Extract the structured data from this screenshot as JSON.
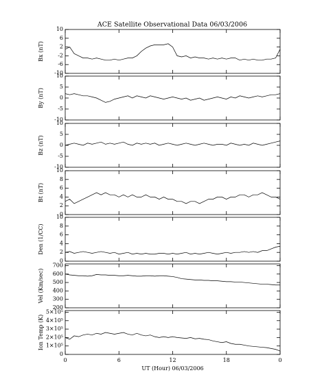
{
  "chart_data": [
    {
      "type": "line",
      "title": "ACE Satellite Observational Data   06/03/2006",
      "ylabel": "Bx (nT)",
      "color": "#000000",
      "x": [
        0,
        0.5,
        1,
        1.5,
        2,
        2.5,
        3,
        3.5,
        4,
        4.5,
        5,
        5.5,
        6,
        6.5,
        7,
        7.5,
        8,
        8.5,
        9,
        9.5,
        10,
        10.5,
        11,
        11.5,
        12,
        12.5,
        13,
        13.5,
        14,
        14.5,
        15,
        15.5,
        16,
        16.5,
        17,
        17.5,
        18,
        18.5,
        19,
        19.5,
        20,
        20.5,
        21,
        21.5,
        22,
        22.5,
        23,
        23.5,
        24
      ],
      "values": [
        1,
        2,
        -1,
        -2,
        -3,
        -3,
        -3.5,
        -3,
        -3.5,
        -4,
        -4,
        -3.5,
        -4,
        -3.5,
        -3,
        -3,
        -2,
        0,
        1.5,
        2.5,
        3,
        3,
        3,
        3.5,
        2,
        -2,
        -2.5,
        -2,
        -3,
        -2.5,
        -3,
        -3,
        -3.5,
        -3,
        -3.5,
        -3,
        -3.5,
        -3,
        -3,
        -4,
        -3.5,
        -4,
        -3.5,
        -4,
        -4,
        -3.5,
        -3.5,
        -3,
        1
      ],
      "xlim": [
        0,
        24
      ],
      "ylim": [
        -10,
        10
      ],
      "yticks": [
        -10,
        -6,
        -2,
        2,
        6,
        10
      ]
    },
    {
      "type": "line",
      "ylabel": "By (nT)",
      "color": "#000000",
      "x": [
        0,
        0.5,
        1,
        1.5,
        2,
        2.5,
        3,
        3.5,
        4,
        4.5,
        5,
        5.5,
        6,
        6.5,
        7,
        7.5,
        8,
        8.5,
        9,
        9.5,
        10,
        10.5,
        11,
        11.5,
        12,
        12.5,
        13,
        13.5,
        14,
        14.5,
        15,
        15.5,
        16,
        16.5,
        17,
        17.5,
        18,
        18.5,
        19,
        19.5,
        20,
        20.5,
        21,
        21.5,
        22,
        22.5,
        23,
        23.5,
        24
      ],
      "values": [
        2,
        1.5,
        2,
        1.5,
        1,
        1,
        0.5,
        0,
        -1,
        -2,
        -1.5,
        -0.5,
        0,
        0.5,
        1,
        0,
        1,
        0.5,
        0,
        1,
        0.5,
        0,
        -0.5,
        0,
        0.5,
        0,
        -0.5,
        0,
        -1,
        -0.5,
        0,
        -1,
        -0.5,
        0,
        0.5,
        0,
        -0.5,
        0.5,
        0,
        1,
        0.5,
        0,
        0.5,
        1,
        0.5,
        1,
        1.5,
        1.5,
        2
      ],
      "xlim": [
        0,
        24
      ],
      "ylim": [
        -10,
        10
      ],
      "yticks": [
        -10,
        -5,
        0,
        5,
        10
      ]
    },
    {
      "type": "line",
      "ylabel": "Bz (nT)",
      "color": "#000000",
      "x": [
        0,
        0.5,
        1,
        1.5,
        2,
        2.5,
        3,
        3.5,
        4,
        4.5,
        5,
        5.5,
        6,
        6.5,
        7,
        7.5,
        8,
        8.5,
        9,
        9.5,
        10,
        10.5,
        11,
        11.5,
        12,
        12.5,
        13,
        13.5,
        14,
        14.5,
        15,
        15.5,
        16,
        16.5,
        17,
        17.5,
        18,
        18.5,
        19,
        19.5,
        20,
        20.5,
        21,
        21.5,
        22,
        22.5,
        23,
        23.5,
        24
      ],
      "values": [
        0,
        0.5,
        1,
        0.5,
        0,
        1,
        0.5,
        1,
        1.5,
        0.5,
        1,
        0.5,
        1,
        1.5,
        0.5,
        0,
        1,
        0.5,
        1,
        0.5,
        1,
        0,
        0.5,
        1,
        0.5,
        0,
        0.5,
        1,
        0.5,
        0,
        0.5,
        1,
        0.5,
        0,
        0.5,
        0.5,
        0,
        1,
        0.5,
        0,
        0.5,
        0,
        1,
        0.5,
        0,
        0.5,
        1,
        1.5,
        2
      ],
      "xlim": [
        0,
        24
      ],
      "ylim": [
        -10,
        10
      ],
      "yticks": [
        -10,
        -5,
        0,
        5,
        10
      ]
    },
    {
      "type": "line",
      "ylabel": "Bt (nT)",
      "color": "#000000",
      "x": [
        0,
        0.5,
        1,
        1.5,
        2,
        2.5,
        3,
        3.5,
        4,
        4.5,
        5,
        5.5,
        6,
        6.5,
        7,
        7.5,
        8,
        8.5,
        9,
        9.5,
        10,
        10.5,
        11,
        11.5,
        12,
        12.5,
        13,
        13.5,
        14,
        14.5,
        15,
        15.5,
        16,
        16.5,
        17,
        17.5,
        18,
        18.5,
        19,
        19.5,
        20,
        20.5,
        21,
        21.5,
        22,
        22.5,
        23,
        23.5,
        24
      ],
      "values": [
        3,
        3.5,
        2.5,
        3,
        3.5,
        4,
        4.5,
        5,
        4.5,
        5,
        4.5,
        4.5,
        4,
        4.5,
        4,
        4.5,
        4,
        4,
        4.5,
        4,
        4,
        3.5,
        4,
        3.5,
        3.5,
        3,
        3,
        2.5,
        3,
        3,
        2.5,
        3,
        3.5,
        3.5,
        4,
        4,
        3.5,
        4,
        4,
        4.5,
        4.5,
        4,
        4.5,
        4.5,
        5,
        4.5,
        4,
        4,
        3.5
      ],
      "xlim": [
        0,
        24
      ],
      "ylim": [
        0,
        10
      ],
      "yticks": [
        0,
        2,
        4,
        6,
        8,
        10
      ]
    },
    {
      "type": "line",
      "ylabel": "Den (1/CC)",
      "color": "#000000",
      "x": [
        0,
        0.5,
        1,
        1.5,
        2,
        2.5,
        3,
        3.5,
        4,
        4.5,
        5,
        5.5,
        6,
        6.5,
        7,
        7.5,
        8,
        8.5,
        9,
        9.5,
        10,
        10.5,
        11,
        11.5,
        12,
        12.5,
        13,
        13.5,
        14,
        14.5,
        15,
        15.5,
        16,
        16.5,
        17,
        17.5,
        18,
        18.5,
        19,
        19.5,
        20,
        20.5,
        21,
        21.5,
        22,
        22.5,
        23,
        23.5,
        24
      ],
      "values": [
        2,
        2.2,
        1.8,
        2,
        2.2,
        2,
        1.8,
        2,
        2.2,
        2,
        1.8,
        2,
        1.6,
        1.8,
        2,
        1.6,
        1.8,
        1.6,
        1.8,
        1.6,
        1.6,
        1.8,
        1.8,
        1.6,
        1.8,
        1.6,
        1.8,
        2,
        1.6,
        1.8,
        1.6,
        1.8,
        2,
        1.8,
        1.6,
        1.8,
        2,
        1.8,
        2,
        2,
        2.2,
        2,
        2.2,
        2,
        2.4,
        2.4,
        2.8,
        3.2,
        3.4
      ],
      "xlim": [
        0,
        24
      ],
      "ylim": [
        0,
        10
      ],
      "yticks": [
        0,
        2,
        4,
        6,
        8,
        10
      ]
    },
    {
      "type": "line",
      "ylabel": "Vel (Km/sec)",
      "color": "#000000",
      "x": [
        0,
        0.5,
        1,
        1.5,
        2,
        2.5,
        3,
        3.5,
        4,
        4.5,
        5,
        5.5,
        6,
        6.5,
        7,
        7.5,
        8,
        8.5,
        9,
        9.5,
        10,
        10.5,
        11,
        11.5,
        12,
        12.5,
        13,
        13.5,
        14,
        14.5,
        15,
        15.5,
        16,
        16.5,
        17,
        17.5,
        18,
        18.5,
        19,
        19.5,
        20,
        20.5,
        21,
        21.5,
        22,
        22.5,
        23,
        23.5,
        24
      ],
      "values": [
        600,
        590,
        585,
        580,
        580,
        575,
        580,
        595,
        590,
        590,
        585,
        585,
        580,
        580,
        585,
        580,
        575,
        575,
        580,
        580,
        575,
        580,
        580,
        575,
        570,
        560,
        545,
        540,
        535,
        530,
        530,
        525,
        525,
        520,
        520,
        515,
        510,
        510,
        505,
        505,
        500,
        495,
        490,
        485,
        480,
        480,
        475,
        470,
        470
      ],
      "xlim": [
        0,
        24
      ],
      "ylim": [
        200,
        720
      ],
      "yticks": [
        200,
        300,
        400,
        500,
        600,
        700
      ]
    },
    {
      "type": "line",
      "ylabel": "Ion Temp (K)",
      "xlabel": "UT (Hour)   06/03/2006",
      "color": "#000000",
      "x": [
        0,
        0.5,
        1,
        1.5,
        2,
        2.5,
        3,
        3.5,
        4,
        4.5,
        5,
        5.5,
        6,
        6.5,
        7,
        7.5,
        8,
        8.5,
        9,
        9.5,
        10,
        10.5,
        11,
        11.5,
        12,
        12.5,
        13,
        13.5,
        14,
        14.5,
        15,
        15.5,
        16,
        16.5,
        17,
        17.5,
        18,
        18.5,
        19,
        19.5,
        20,
        20.5,
        21,
        21.5,
        22,
        22.5,
        23,
        23.5,
        24
      ],
      "values": [
        200000,
        180000,
        220000,
        210000,
        230000,
        240000,
        230000,
        250000,
        240000,
        260000,
        250000,
        240000,
        250000,
        260000,
        240000,
        230000,
        250000,
        230000,
        220000,
        230000,
        210000,
        200000,
        210000,
        200000,
        210000,
        200000,
        195000,
        190000,
        200000,
        185000,
        190000,
        180000,
        175000,
        160000,
        150000,
        140000,
        150000,
        130000,
        120000,
        120000,
        110000,
        100000,
        95000,
        90000,
        85000,
        80000,
        70000,
        60000,
        40000
      ],
      "xlim": [
        0,
        24
      ],
      "ylim": [
        0,
        520000
      ],
      "yticks": [
        0,
        {
          "value": 100000,
          "label": "1×10⁵"
        },
        {
          "value": 200000,
          "label": "2×10⁵"
        },
        {
          "value": 300000,
          "label": "3×10⁵"
        },
        {
          "value": 400000,
          "label": "4×10⁵"
        },
        {
          "value": 500000,
          "label": "5×10⁵"
        }
      ],
      "xticks": [
        0,
        6,
        12,
        18,
        {
          "value": 24,
          "label": "0"
        }
      ]
    }
  ]
}
